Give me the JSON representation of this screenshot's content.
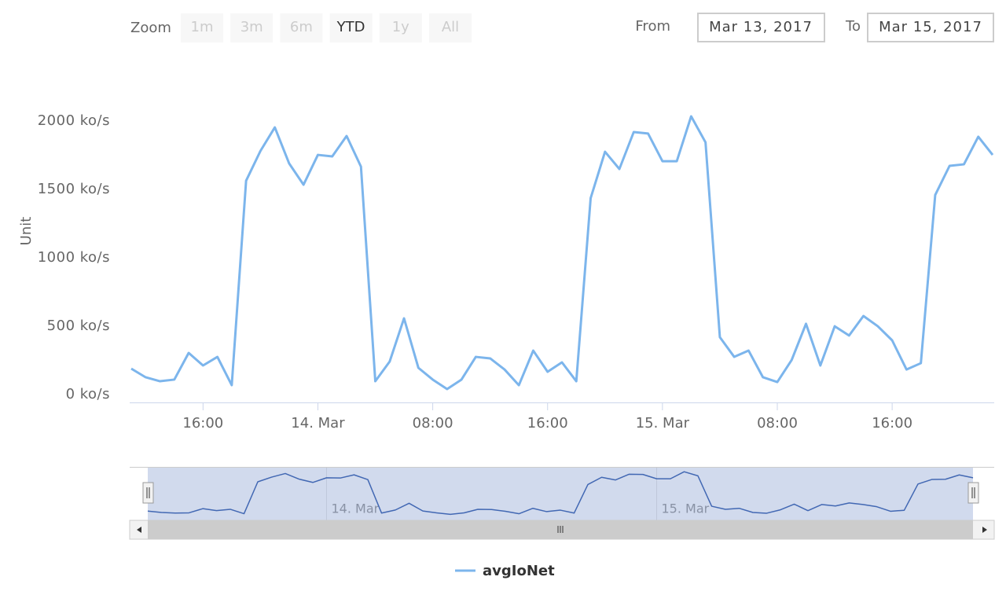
{
  "range_selector": {
    "zoom_label": "Zoom",
    "buttons": [
      "1m",
      "3m",
      "6m",
      "YTD",
      "1y",
      "All"
    ],
    "selected": 3,
    "from_label": "From",
    "from_value": "Mar 13, 2017",
    "to_label": "To",
    "to_value": "Mar 15, 2017"
  },
  "chart_data": {
    "type": "line",
    "y_axis_label": "Unit",
    "x": [
      "2017-03-13T11:00",
      "2017-03-13T12:00",
      "2017-03-13T13:00",
      "2017-03-13T14:00",
      "2017-03-13T15:00",
      "2017-03-13T16:00",
      "2017-03-13T17:00",
      "2017-03-13T18:00",
      "2017-03-13T19:00",
      "2017-03-13T20:00",
      "2017-03-13T21:00",
      "2017-03-13T22:00",
      "2017-03-13T23:00",
      "2017-03-14T00:00",
      "2017-03-14T01:00",
      "2017-03-14T02:00",
      "2017-03-14T03:00",
      "2017-03-14T04:00",
      "2017-03-14T05:00",
      "2017-03-14T06:00",
      "2017-03-14T07:00",
      "2017-03-14T08:00",
      "2017-03-14T09:00",
      "2017-03-14T10:00",
      "2017-03-14T11:00",
      "2017-03-14T12:00",
      "2017-03-14T13:00",
      "2017-03-14T14:00",
      "2017-03-14T15:00",
      "2017-03-14T16:00",
      "2017-03-14T17:00",
      "2017-03-14T18:00",
      "2017-03-14T19:00",
      "2017-03-14T20:00",
      "2017-03-14T21:00",
      "2017-03-14T22:00",
      "2017-03-14T23:00",
      "2017-03-15T00:00",
      "2017-03-15T01:00",
      "2017-03-15T02:00",
      "2017-03-15T03:00",
      "2017-03-15T04:00",
      "2017-03-15T05:00",
      "2017-03-15T06:00",
      "2017-03-15T07:00",
      "2017-03-15T08:00",
      "2017-03-15T09:00",
      "2017-03-15T10:00",
      "2017-03-15T11:00",
      "2017-03-15T12:00",
      "2017-03-15T13:00",
      "2017-03-15T14:00",
      "2017-03-15T15:00",
      "2017-03-15T16:00",
      "2017-03-15T17:00",
      "2017-03-15T18:00",
      "2017-03-15T19:00",
      "2017-03-15T20:00",
      "2017-03-15T21:00",
      "2017-03-15T22:00",
      "2017-03-15T23:00"
    ],
    "series": [
      {
        "name": "avgIoNet",
        "color": "#7cb5ec",
        "values": [
          247,
          184,
          155,
          167,
          362,
          270,
          333,
          126,
          1621,
          1839,
          2011,
          1747,
          1592,
          1810,
          1799,
          1948,
          1724,
          155,
          299,
          615,
          253,
          167,
          98,
          167,
          333,
          322,
          241,
          126,
          379,
          224,
          293,
          155,
          1494,
          1833,
          1707,
          1977,
          1966,
          1764,
          1764,
          2092,
          1902,
          477,
          333,
          379,
          184,
          149,
          310,
          575,
          270,
          557,
          489,
          632,
          557,
          454,
          241,
          287,
          1517,
          1730,
          1741,
          1943,
          1810
        ]
      }
    ],
    "xlim": [
      "2017-03-13T11:00",
      "2017-03-15T23:00"
    ],
    "xticks": [
      {
        "value": "2017-03-13T16:00",
        "label": "16:00"
      },
      {
        "value": "2017-03-14T00:00",
        "label": "14. Mar"
      },
      {
        "value": "2017-03-14T08:00",
        "label": "08:00"
      },
      {
        "value": "2017-03-14T16:00",
        "label": "16:00"
      },
      {
        "value": "2017-03-15T00:00",
        "label": "15. Mar"
      },
      {
        "value": "2017-03-15T08:00",
        "label": "08:00"
      },
      {
        "value": "2017-03-15T16:00",
        "label": "16:00"
      }
    ],
    "ylim": [
      0,
      2100
    ],
    "yticks": [
      {
        "value": 0,
        "label": "0 ko/s"
      },
      {
        "value": 500,
        "label": "500 ko/s"
      },
      {
        "value": 1000,
        "label": "1000 ko/s"
      },
      {
        "value": 1500,
        "label": "1500 ko/s"
      },
      {
        "value": 2000,
        "label": "2000 ko/s"
      }
    ],
    "navigator_ticks": [
      {
        "value": "2017-03-14T00:00",
        "label": "14. Mar"
      },
      {
        "value": "2017-03-15T00:00",
        "label": "15. Mar"
      }
    ]
  }
}
